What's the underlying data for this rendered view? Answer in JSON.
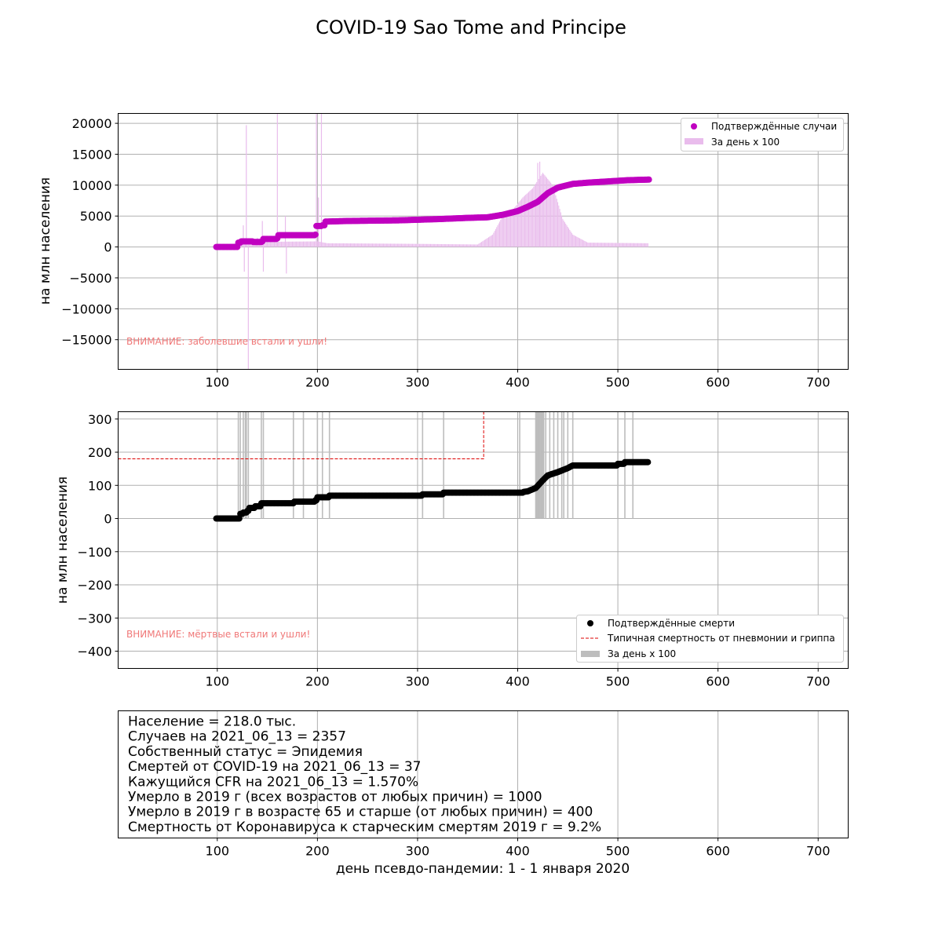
{
  "title": "COVID-19 Sao Tome and Principe",
  "colors": {
    "cases": "#c000c0",
    "cases_daily": "#e9bcec",
    "deaths": "#000000",
    "deaths_daily": "#bdbdbd",
    "typical": "#dd0000",
    "warning": "#f07878"
  },
  "chart_data": [
    {
      "type": "scatter",
      "panel": "cases",
      "ylabel": "на млн населения",
      "xlim": [
        1,
        730
      ],
      "ylim": [
        -19800,
        21600
      ],
      "xticks": [
        100,
        200,
        300,
        400,
        500,
        600,
        700
      ],
      "yticks": [
        -15000,
        -10000,
        -5000,
        0,
        5000,
        10000,
        15000,
        20000
      ],
      "ytick_labels": [
        "−15000",
        "−10000",
        "−5000",
        "0",
        "5000",
        "10000",
        "15000",
        "20000"
      ],
      "grid": true,
      "legend_position": "top-right",
      "legend": [
        "Подтверждённые случаи",
        "За день x 100"
      ],
      "warning": "ВНИМАНИЕ: заболевшие встали и ушли!",
      "series": [
        {
          "name": "Подтверждённые случаи",
          "points": [
            [
              99,
              0
            ],
            [
              120,
              0
            ],
            [
              121,
              700
            ],
            [
              124,
              900
            ],
            [
              136,
              800
            ],
            [
              145,
              900
            ],
            [
              146,
              1300
            ],
            [
              160,
              1400
            ],
            [
              161,
              1900
            ],
            [
              175,
              1900
            ],
            [
              198,
              2000
            ],
            [
              199,
              3400
            ],
            [
              205,
              3500
            ],
            [
              208,
              4100
            ],
            [
              230,
              4200
            ],
            [
              280,
              4300
            ],
            [
              300,
              4400
            ],
            [
              320,
              4500
            ],
            [
              350,
              4700
            ],
            [
              370,
              4800
            ],
            [
              385,
              5200
            ],
            [
              400,
              5800
            ],
            [
              410,
              6500
            ],
            [
              420,
              7300
            ],
            [
              430,
              8700
            ],
            [
              440,
              9600
            ],
            [
              455,
              10200
            ],
            [
              470,
              10400
            ],
            [
              490,
              10600
            ],
            [
              510,
              10800
            ],
            [
              531,
              10900
            ]
          ]
        },
        {
          "name": "За день x 100",
          "baseline": [
            [
              100,
              0
            ],
            [
              125,
              800
            ],
            [
              200,
              900
            ],
            [
              210,
              600
            ],
            [
              300,
              500
            ],
            [
              360,
              400
            ],
            [
              375,
              2000
            ],
            [
              385,
              5000
            ],
            [
              395,
              6000
            ],
            [
              405,
              8000
            ],
            [
              415,
              9500
            ],
            [
              425,
              12000
            ],
            [
              435,
              10000
            ],
            [
              445,
              4500
            ],
            [
              455,
              2000
            ],
            [
              470,
              700
            ],
            [
              530,
              600
            ]
          ],
          "spikes": [
            [
              126,
              3500
            ],
            [
              127,
              -4000
            ],
            [
              129,
              19700
            ],
            [
              131,
              -19800
            ],
            [
              140,
              1500
            ],
            [
              145,
              4200
            ],
            [
              146,
              -4000
            ],
            [
              160,
              21600
            ],
            [
              168,
              5000
            ],
            [
              169,
              -4300
            ],
            [
              199,
              21600
            ],
            [
              201,
              8000
            ],
            [
              204,
              21600
            ],
            [
              420,
              13600
            ],
            [
              422,
              13800
            ]
          ]
        }
      ]
    },
    {
      "type": "scatter",
      "panel": "deaths",
      "ylabel": "на млн населения",
      "xlim": [
        1,
        730
      ],
      "ylim": [
        -452,
        322
      ],
      "xticks": [
        100,
        200,
        300,
        400,
        500,
        600,
        700
      ],
      "yticks": [
        -400,
        -300,
        -200,
        -100,
        0,
        100,
        200,
        300
      ],
      "ytick_labels": [
        "−400",
        "−300",
        "−200",
        "−100",
        "0",
        "100",
        "200",
        "300"
      ],
      "grid": true,
      "legend_position": "bottom-right",
      "legend": [
        "Подтверждённые смерти",
        "Типичная смертность от пневмонии и гриппа",
        "За день x 100"
      ],
      "warning": "ВНИМАНИЕ: мёртвые встали и ушли!",
      "series": [
        {
          "name": "Подтверждённые смерти",
          "points": [
            [
              99,
              0
            ],
            [
              121,
              0
            ],
            [
              123,
              14
            ],
            [
              126,
              18
            ],
            [
              130,
              23
            ],
            [
              132,
              32
            ],
            [
              138,
              37
            ],
            [
              144,
              46
            ],
            [
              175,
              46
            ],
            [
              177,
              51
            ],
            [
              198,
              55
            ],
            [
              200,
              64
            ],
            [
              212,
              69
            ],
            [
              300,
              69
            ],
            [
              305,
              73
            ],
            [
              326,
              78
            ],
            [
              400,
              78
            ],
            [
              410,
              82
            ],
            [
              418,
              92
            ],
            [
              425,
              115
            ],
            [
              430,
              130
            ],
            [
              440,
              140
            ],
            [
              450,
              152
            ],
            [
              455,
              160
            ],
            [
              495,
              160
            ],
            [
              500,
              165
            ],
            [
              507,
              170
            ],
            [
              530,
              170
            ]
          ]
        },
        {
          "name": "Типичная смертность от пневмонии и гриппа",
          "points": [
            [
              1,
              180
            ],
            [
              366,
              180
            ],
            [
              366,
              322
            ]
          ]
        },
        {
          "name": "За день x 100",
          "spikes": [
            121,
            123,
            126,
            128,
            129,
            131,
            144,
            146,
            176,
            186,
            200,
            205,
            212,
            305,
            326,
            402,
            418,
            419,
            420,
            421,
            422,
            423,
            424,
            425,
            426,
            428,
            432,
            436,
            440,
            444,
            446,
            450,
            455,
            500,
            507,
            515
          ]
        }
      ]
    }
  ],
  "info": {
    "lines": [
      "Население = 218.0 тыс.",
      "Случаев на 2021_06_13 = 2357",
      "Собственный статус = Эпидемия",
      "Смертей от COVID-19 на 2021_06_13 = 37",
      "Кажущийся CFR на 2021_06_13 = 1.570%",
      "Умерло в 2019 г (всех возрастов от любых причин) = 1000",
      "Умерло в 2019 г в возрасте 65 и старше (от любых причин) = 400",
      "Смертность от Коронавируса к старческим смертям 2019 г = 9.2%"
    ],
    "xticks": [
      100,
      200,
      300,
      400,
      500,
      600,
      700
    ],
    "xlabel": "день псевдо-пандемии: 1 - 1 января 2020"
  }
}
